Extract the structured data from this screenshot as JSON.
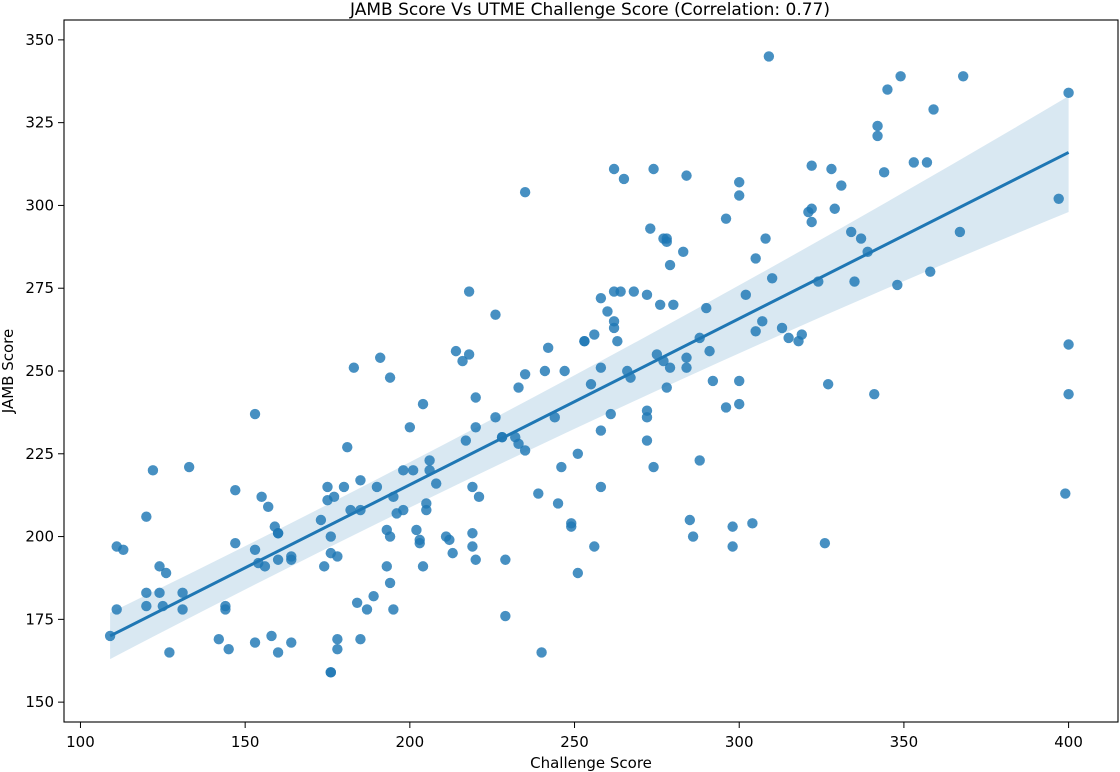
{
  "chart_data": {
    "type": "scatter",
    "title": "JAMB Score Vs UTME Challenge Score (Correlation: 0.77)",
    "xlabel": "Challenge Score",
    "ylabel": "JAMB Score",
    "xlim": [
      95,
      415
    ],
    "ylim": [
      144,
      356
    ],
    "xticks": [
      100,
      150,
      200,
      250,
      300,
      350,
      400
    ],
    "yticks": [
      150,
      175,
      200,
      225,
      250,
      275,
      300,
      325,
      350
    ],
    "grid": false,
    "legend": "none",
    "point_color": "#1f77b4",
    "regression": {
      "x": [
        109,
        400
      ],
      "y": [
        170,
        316
      ],
      "ci_lower": [
        163,
        298
      ],
      "ci_upper": [
        177,
        333
      ],
      "color": "#1f77b4",
      "band_color": "#1f77b4"
    },
    "points": {
      "x": [
        109,
        111,
        111,
        113,
        120,
        120,
        120,
        122,
        124,
        124,
        125,
        126,
        127,
        131,
        131,
        133,
        142,
        144,
        144,
        145,
        147,
        147,
        153,
        153,
        153,
        154,
        155,
        156,
        157,
        158,
        159,
        160,
        160,
        160,
        160,
        164,
        164,
        164,
        173,
        174,
        175,
        175,
        176,
        176,
        176,
        176,
        177,
        178,
        178,
        178,
        180,
        181,
        182,
        183,
        184,
        185,
        185,
        185,
        187,
        189,
        190,
        191,
        193,
        193,
        194,
        194,
        194,
        195,
        195,
        196,
        198,
        198,
        200,
        201,
        202,
        203,
        203,
        204,
        204,
        205,
        205,
        206,
        206,
        208,
        211,
        212,
        213,
        214,
        216,
        217,
        218,
        218,
        219,
        219,
        219,
        220,
        220,
        220,
        221,
        226,
        226,
        228,
        228,
        229,
        229,
        232,
        233,
        233,
        235,
        235,
        235,
        239,
        240,
        241,
        242,
        244,
        245,
        246,
        247,
        249,
        249,
        251,
        251,
        253,
        253,
        255,
        256,
        256,
        258,
        258,
        258,
        258,
        260,
        261,
        262,
        262,
        262,
        262,
        263,
        264,
        265,
        266,
        267,
        268,
        272,
        272,
        272,
        272,
        273,
        274,
        274,
        275,
        276,
        277,
        277,
        278,
        278,
        278,
        279,
        279,
        280,
        283,
        284,
        284,
        284,
        285,
        286,
        288,
        288,
        290,
        291,
        292,
        296,
        296,
        298,
        298,
        300,
        300,
        300,
        300,
        302,
        304,
        305,
        305,
        307,
        308,
        309,
        310,
        313,
        315,
        318,
        319,
        321,
        322,
        322,
        322,
        324,
        326,
        327,
        328,
        329,
        331,
        334,
        335,
        337,
        339,
        341,
        342,
        342,
        344,
        345,
        348,
        349,
        353,
        357,
        358,
        359,
        367,
        368,
        397,
        399,
        400,
        400,
        400
      ],
      "y": [
        170,
        197,
        178,
        196,
        206,
        183,
        179,
        220,
        191,
        183,
        179,
        189,
        165,
        183,
        178,
        221,
        169,
        179,
        178,
        166,
        214,
        198,
        237,
        196,
        168,
        192,
        212,
        191,
        209,
        170,
        203,
        201,
        193,
        165,
        201,
        194,
        193,
        168,
        205,
        191,
        215,
        211,
        200,
        195,
        159,
        159,
        212,
        169,
        166,
        194,
        215,
        227,
        208,
        251,
        180,
        169,
        208,
        217,
        178,
        182,
        215,
        254,
        191,
        202,
        200,
        248,
        186,
        212,
        178,
        207,
        208,
        220,
        233,
        220,
        202,
        199,
        198,
        240,
        191,
        208,
        210,
        220,
        223,
        216,
        200,
        199,
        195,
        256,
        253,
        229,
        274,
        255,
        215,
        201,
        197,
        233,
        242,
        193,
        212,
        267,
        236,
        230,
        230,
        193,
        176,
        230,
        245,
        228,
        226,
        304,
        249,
        213,
        165,
        250,
        257,
        236,
        210,
        221,
        250,
        204,
        203,
        225,
        189,
        259,
        259,
        246,
        197,
        261,
        251,
        215,
        232,
        272,
        268,
        237,
        274,
        263,
        265,
        311,
        259,
        274,
        308,
        250,
        248,
        274,
        273,
        238,
        236,
        229,
        293,
        221,
        311,
        255,
        270,
        290,
        253,
        245,
        290,
        289,
        251,
        282,
        270,
        286,
        309,
        254,
        251,
        205,
        200,
        260,
        223,
        269,
        256,
        247,
        296,
        239,
        197,
        203,
        307,
        303,
        240,
        247,
        273,
        204,
        262,
        284,
        265,
        290,
        345,
        278,
        263,
        260,
        259,
        261,
        298,
        295,
        312,
        299,
        277,
        198,
        246,
        311,
        299,
        306,
        292,
        277,
        290,
        286,
        243,
        321,
        324,
        310,
        335,
        276,
        339,
        313,
        313,
        280,
        329,
        292,
        339,
        302,
        213,
        334,
        258,
        243
      ]
    },
    "caption": "JAMB Score Vs UTME Challenge Score (Correlation: 0.77)"
  }
}
